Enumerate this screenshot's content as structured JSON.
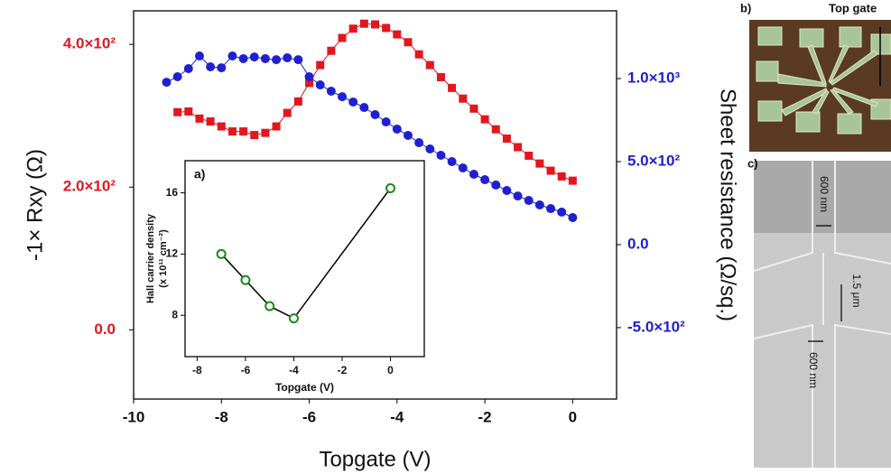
{
  "chart_data": [
    {
      "type": "line",
      "x_label": "Topgate (V)",
      "y_label": "-1× Rxy (Ω)",
      "y2_label": "Sheet resistance (Ω/sq.)",
      "xlim": [
        -10,
        1
      ],
      "xticks": [
        -10,
        -8,
        -6,
        -4,
        -2,
        0
      ],
      "ylim": [
        -97,
        447
      ],
      "yticks": [
        {
          "value": 0,
          "label": "0.0"
        },
        {
          "value": 200,
          "label": "2.0×10²"
        },
        {
          "value": 400,
          "label": "4.0×10²"
        }
      ],
      "y2lim": [
        -930,
        1408
      ],
      "y2ticks": [
        {
          "value": -500,
          "label": "-5.0×10²"
        },
        {
          "value": 0,
          "label": "0.0"
        },
        {
          "value": 500,
          "label": "5.0×10²"
        },
        {
          "value": 1000,
          "label": "1.0×10³"
        }
      ],
      "series": [
        {
          "color": "#e3161e",
          "marker": "square",
          "x": [
            -9,
            -8.75,
            -8.5,
            -8.25,
            -8,
            -7.75,
            -7.5,
            -7.25,
            -7,
            -6.75,
            -6.5,
            -6.25,
            -6,
            -5.75,
            -5.5,
            -5.25,
            -5,
            -4.75,
            -4.5,
            -4.25,
            -4,
            -3.75,
            -3.5,
            -3.25,
            -3,
            -2.75,
            -2.5,
            -2.25,
            -2,
            -1.75,
            -1.5,
            -1.25,
            -1,
            -0.75,
            -0.5,
            -0.25,
            0
          ],
          "values": [
            305,
            306,
            296,
            292,
            285,
            278,
            278,
            273,
            276,
            285,
            304,
            320,
            346,
            371,
            391,
            409,
            422,
            429,
            428,
            423,
            414,
            403,
            386,
            371,
            354,
            339,
            324,
            310,
            295,
            281,
            268,
            256,
            244,
            233,
            223,
            215,
            209
          ]
        },
        {
          "color": "#2020d2",
          "marker": "circle",
          "axis": "y2",
          "x": [
            -9.25,
            -9,
            -8.75,
            -8.5,
            -8.25,
            -8,
            -7.75,
            -7.5,
            -7.25,
            -7,
            -6.75,
            -6.5,
            -6.25,
            -6,
            -5.75,
            -5.5,
            -5.25,
            -5,
            -4.75,
            -4.5,
            -4.25,
            -4,
            -3.75,
            -3.5,
            -3.25,
            -3,
            -2.75,
            -2.5,
            -2.25,
            -2,
            -1.75,
            -1.5,
            -1.25,
            -1,
            -0.75,
            -0.5,
            -0.25,
            0
          ],
          "values": [
            978,
            1011,
            1060,
            1136,
            1071,
            1065,
            1136,
            1120,
            1130,
            1120,
            1114,
            1125,
            1114,
            1011,
            962,
            924,
            891,
            859,
            826,
            783,
            739,
            696,
            658,
            614,
            576,
            538,
            500,
            462,
            424,
            391,
            359,
            326,
            293,
            266,
            239,
            217,
            196,
            163
          ]
        }
      ]
    },
    {
      "type": "line",
      "title": "a)",
      "x_label": "Topgate (V)",
      "y_label": [
        "Hall carrier density",
        "(x 10¹¹ cm⁻²)"
      ],
      "xlim": [
        -8.5,
        1.4
      ],
      "xticks": [
        -8,
        -6,
        -4,
        -2,
        0
      ],
      "ylim": [
        5.3,
        18.1
      ],
      "yticks": [
        8,
        12,
        16
      ],
      "series": [
        {
          "color": "#1a8a1a",
          "line_color": "#000000",
          "marker": "open-circle",
          "x": [
            -7,
            -6,
            -5,
            -4,
            0
          ],
          "values": [
            12.0,
            10.3,
            8.6,
            7.8,
            16.3
          ]
        }
      ]
    }
  ],
  "images": {
    "b": {
      "label": "b)",
      "annotation": "Top gate"
    },
    "c": {
      "label": "c)",
      "annotations": [
        "600 nm",
        "1.5 μm",
        "600 nm"
      ]
    }
  }
}
